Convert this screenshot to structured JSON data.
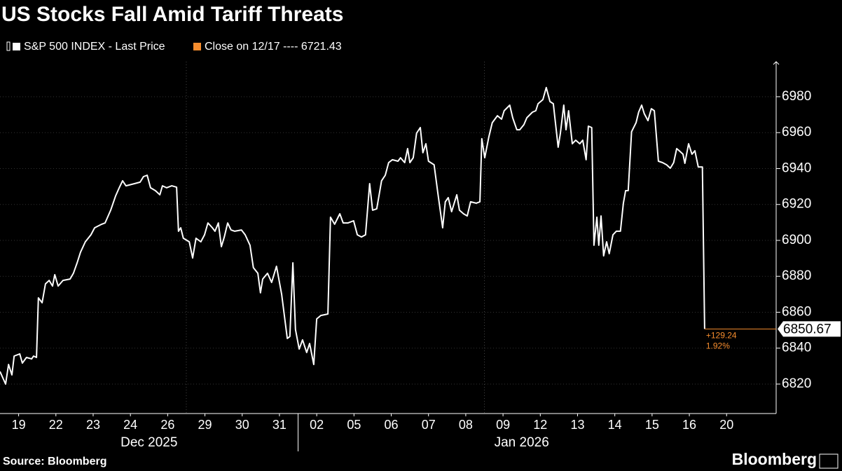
{
  "chart_data": {
    "type": "line",
    "title": "US Stocks Fall Amid Tariff Threats",
    "source": "Source: Bloomberg",
    "brand": "Bloomberg",
    "series": [
      {
        "name": "S&P 500 INDEX - Last Price",
        "color": "#ffffff",
        "x": [
          0.0,
          0.15,
          0.23,
          0.32,
          0.38,
          0.53,
          0.6,
          0.71,
          0.85,
          0.9,
          0.98,
          1.03,
          1.13,
          1.22,
          1.32,
          1.41,
          1.47,
          1.56,
          1.69,
          1.88,
          1.97,
          2.07,
          2.16,
          2.29,
          2.44,
          2.54,
          2.73,
          2.82,
          2.97,
          3.1,
          3.2,
          3.29,
          3.38,
          3.61,
          3.76,
          3.85,
          3.95,
          4.04,
          4.17,
          4.29,
          4.36,
          4.47,
          4.61,
          4.74,
          4.79,
          4.85,
          4.92,
          5.08,
          5.17,
          5.26,
          5.39,
          5.49,
          5.58,
          5.7,
          5.77,
          5.86,
          5.94,
          6.02,
          6.11,
          6.2,
          6.3,
          6.48,
          6.58,
          6.71,
          6.8,
          6.92,
          6.99,
          7.05,
          7.18,
          7.29,
          7.42,
          7.56,
          7.71,
          7.78,
          7.86,
          7.93,
          8.03,
          8.12,
          8.23,
          8.31,
          8.42,
          8.5,
          8.61,
          8.8,
          8.87,
          8.98,
          9.12,
          9.21,
          9.34,
          9.49,
          9.59,
          9.7,
          9.81,
          9.92,
          10.0,
          10.11,
          10.24,
          10.34,
          10.43,
          10.53,
          10.68,
          10.75,
          10.86,
          10.94,
          11.0,
          11.09,
          11.18,
          11.28,
          11.35,
          11.43,
          11.5,
          11.65,
          11.75,
          11.88,
          11.95,
          12.03,
          12.12,
          12.26,
          12.33,
          12.44,
          12.54,
          12.63,
          12.78,
          12.88,
          12.93,
          13.01,
          13.12,
          13.21,
          13.35,
          13.46,
          13.53,
          13.68,
          13.76,
          13.87,
          13.95,
          14.06,
          14.14,
          14.29,
          14.38,
          14.44,
          14.57,
          14.66,
          14.76,
          14.85,
          14.98,
          15.04,
          15.13,
          15.19,
          15.26,
          15.36,
          15.45,
          15.56,
          15.64,
          15.73,
          15.79,
          15.88,
          15.94,
          16.02,
          16.07,
          16.13,
          16.2,
          16.28,
          16.35,
          16.45,
          16.54,
          16.65,
          16.73,
          16.79,
          16.86,
          16.95,
          17.07,
          17.14,
          17.22,
          17.29,
          17.39,
          17.48,
          17.56,
          17.67,
          17.78,
          17.89,
          17.99,
          18.08,
          18.16,
          18.23,
          18.33,
          18.38,
          18.48,
          18.57,
          18.65,
          18.74,
          18.85,
          18.91
        ],
        "values": [
          6827.0,
          6820.0,
          6830.9,
          6825.1,
          6835.6,
          6836.8,
          6831.7,
          6834.8,
          6834.0,
          6835.6,
          6834.8,
          6868.0,
          6865.3,
          6875.8,
          6877.7,
          6874.6,
          6880.9,
          6874.6,
          6877.7,
          6878.5,
          6881.7,
          6887.5,
          6893.4,
          6899.2,
          6903.1,
          6907.0,
          6909.0,
          6909.7,
          6916.8,
          6924.6,
          6929.3,
          6933.2,
          6930.4,
          6931.6,
          6932.4,
          6935.5,
          6936.3,
          6929.3,
          6927.7,
          6925.4,
          6930.4,
          6929.3,
          6930.4,
          6929.6,
          6905.1,
          6907.0,
          6901.2,
          6899.2,
          6890.2,
          6901.2,
          6899.2,
          6903.1,
          6909.7,
          6907.0,
          6905.1,
          6909.7,
          6896.5,
          6901.9,
          6909.7,
          6905.8,
          6905.1,
          6905.8,
          6903.1,
          6897.3,
          6884.8,
          6881.7,
          6870.8,
          6878.5,
          6881.7,
          6876.6,
          6885.6,
          6869.9,
          6845.4,
          6846.5,
          6887.5,
          6850.4,
          6839.5,
          6844.6,
          6837.6,
          6842.6,
          6830.9,
          6856.3,
          6858.2,
          6859.0,
          6912.9,
          6909.0,
          6914.8,
          6909.7,
          6909.7,
          6910.9,
          6903.1,
          6901.9,
          6903.1,
          6931.6,
          6916.8,
          6917.6,
          6933.2,
          6936.3,
          6943.3,
          6944.9,
          6944.1,
          6946.0,
          6943.3,
          6951.1,
          6943.3,
          6946.0,
          6959.7,
          6962.8,
          6948.8,
          6953.8,
          6944.1,
          6942.1,
          6926.5,
          6907.0,
          6921.5,
          6923.8,
          6916.0,
          6925.4,
          6916.8,
          6914.8,
          6913.6,
          6921.5,
          6920.7,
          6921.5,
          6956.6,
          6946.0,
          6957.7,
          6965.5,
          6969.4,
          6967.5,
          6972.2,
          6975.3,
          6968.3,
          6961.6,
          6961.6,
          6964.4,
          6968.3,
          6971.4,
          6972.2,
          6976.1,
          6978.4,
          6985.1,
          6977.3,
          6976.1,
          6951.9,
          6959.7,
          6975.3,
          6961.6,
          6972.2,
          6953.8,
          6955.8,
          6953.8,
          6955.8,
          6944.9,
          6963.6,
          6962.8,
          6897.3,
          6912.9,
          6897.3,
          6913.6,
          6891.4,
          6899.2,
          6892.6,
          6903.1,
          6905.1,
          6905.1,
          6920.7,
          6927.7,
          6927.7,
          6960.5,
          6965.5,
          6971.4,
          6975.3,
          6970.6,
          6966.7,
          6973.3,
          6972.2,
          6944.1,
          6943.3,
          6942.1,
          6940.2,
          6943.3,
          6951.1,
          6949.9,
          6948.0,
          6942.9,
          6953.8,
          6948.0,
          6949.9,
          6940.9,
          6940.9,
          6850.67
        ]
      }
    ],
    "reference": {
      "label": "Close on 12/17 ----",
      "value": 6721.43,
      "color": "#f68d2e"
    },
    "last_value": 6850.67,
    "change": {
      "value": 129.24,
      "label": "+129.24"
    },
    "change_pct": {
      "value": 1.92,
      "label": "1.92%"
    },
    "xlim": [
      0,
      20.83
    ],
    "xticks": [
      {
        "value": 0.5,
        "label": "19"
      },
      {
        "value": 1.5,
        "label": "22"
      },
      {
        "value": 2.5,
        "label": "23"
      },
      {
        "value": 3.5,
        "label": "24"
      },
      {
        "value": 4.5,
        "label": "26"
      },
      {
        "value": 5.5,
        "label": "29"
      },
      {
        "value": 6.5,
        "label": "30"
      },
      {
        "value": 7.5,
        "label": "31"
      },
      {
        "value": 8.5,
        "label": "02"
      },
      {
        "value": 9.5,
        "label": "05"
      },
      {
        "value": 10.5,
        "label": "06"
      },
      {
        "value": 11.5,
        "label": "07"
      },
      {
        "value": 12.5,
        "label": "08"
      },
      {
        "value": 13.5,
        "label": "09"
      },
      {
        "value": 14.5,
        "label": "12"
      },
      {
        "value": 15.5,
        "label": "13"
      },
      {
        "value": 16.5,
        "label": "14"
      },
      {
        "value": 17.5,
        "label": "15"
      },
      {
        "value": 18.5,
        "label": "16"
      },
      {
        "value": 19.5,
        "label": "20"
      }
    ],
    "x_groups": [
      {
        "label": "Dec 2025",
        "from": 0,
        "to": 8
      },
      {
        "label": "Jan 2026",
        "from": 8,
        "to": 20
      }
    ],
    "vgrid": [
      5,
      13
    ],
    "ylim": [
      6803.6,
      6999.5
    ],
    "yticks": [
      6820,
      6840,
      6860,
      6880,
      6900,
      6920,
      6940,
      6960,
      6980
    ],
    "grid": true
  }
}
